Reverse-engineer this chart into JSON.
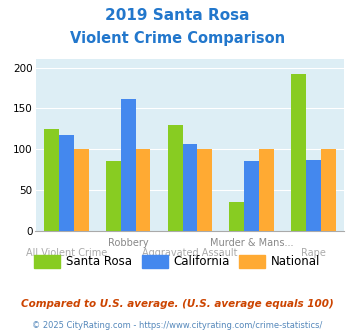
{
  "title_line1": "2019 Santa Rosa",
  "title_line2": "Violent Crime Comparison",
  "title_color": "#2277cc",
  "categories": [
    "All Violent Crime",
    "Robbery",
    "Aggravated Assault",
    "Murder & Mans...",
    "Rape"
  ],
  "santa_rosa": [
    125,
    86,
    130,
    35,
    192
  ],
  "california": [
    117,
    161,
    107,
    86,
    87
  ],
  "national": [
    100,
    100,
    100,
    100,
    100
  ],
  "colors": {
    "santa_rosa": "#88cc22",
    "california": "#4488ee",
    "national": "#ffaa33"
  },
  "ylim": [
    0,
    210
  ],
  "yticks": [
    0,
    50,
    100,
    150,
    200
  ],
  "background_color": "#ddeef5",
  "legend_labels": [
    "Santa Rosa",
    "California",
    "National"
  ],
  "footnote1": "Compared to U.S. average. (U.S. average equals 100)",
  "footnote2": "© 2025 CityRating.com - https://www.cityrating.com/crime-statistics/",
  "footnote1_color": "#cc4400",
  "footnote2_color": "#5588bb"
}
